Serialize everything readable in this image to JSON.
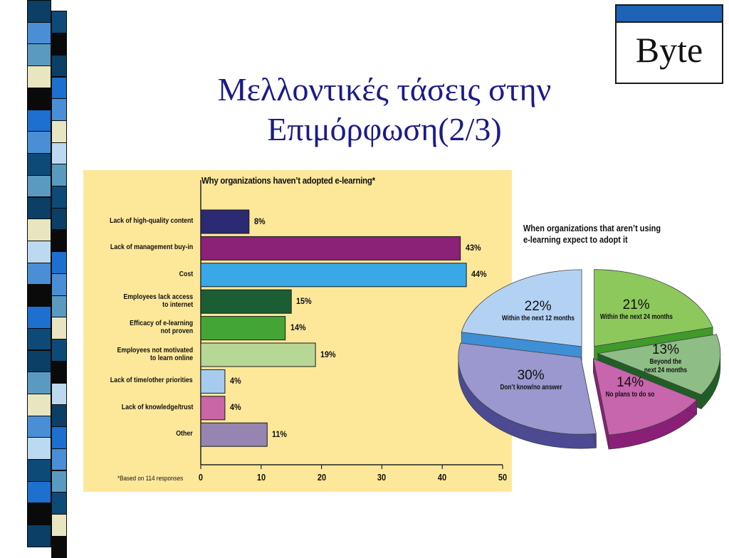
{
  "slide": {
    "title_line1": "Μελλοντικές τάσεις στην",
    "title_line2": "Επιμόρφωση(2/3)"
  },
  "logo": {
    "text": "Byte"
  },
  "chart_data": [
    {
      "type": "bar",
      "orientation": "horizontal",
      "title": "Why organizations haven’t adopted e-learning*",
      "categories": [
        [
          "Lack of high-quality content"
        ],
        [
          "Lack of management buy-in"
        ],
        [
          "Cost"
        ],
        [
          "Employees lack access",
          "to internet"
        ],
        [
          "Efficacy of e-learning",
          "not proven"
        ],
        [
          "Employees not motivated",
          "to learn online"
        ],
        [
          "Lack of time/other priorities"
        ],
        [
          "Lack of knowledge/trust"
        ],
        [
          "Other"
        ]
      ],
      "values": [
        8,
        43,
        44,
        15,
        14,
        19,
        4,
        4,
        11
      ],
      "value_labels": [
        "8%",
        "43%",
        "44%",
        "15%",
        "14%",
        "19%",
        "4%",
        "4%",
        "11%"
      ],
      "colors": [
        "#2b2a72",
        "#8c2178",
        "#3aa7e6",
        "#1c5e33",
        "#43a536",
        "#b7d795",
        "#a7cbef",
        "#c866a6",
        "#9585b0"
      ],
      "xlim": [
        0,
        50
      ],
      "xticks": [
        "0",
        "10",
        "20",
        "30",
        "40",
        "50"
      ],
      "footnote": "*Based on 114 responses"
    },
    {
      "type": "pie",
      "style": "exploded-3d",
      "title_line1": "When organizations that aren’t using",
      "title_line2": "e-learning expect to adopt it",
      "slices": [
        {
          "pct": "22%",
          "value": 22,
          "label": [
            "Within the next 12 months"
          ],
          "color": "#b3d2f3",
          "side": "#3f8fd6"
        },
        {
          "pct": "21%",
          "value": 21,
          "label": [
            "Within the next 24 months"
          ],
          "color": "#8cc85c",
          "side": "#3f9a2a"
        },
        {
          "pct": "13%",
          "value": 13,
          "label": [
            "Beyond the",
            "next 24 months"
          ],
          "color": "#8fbd86",
          "side": "#1f5f26"
        },
        {
          "pct": "14%",
          "value": 14,
          "label": [
            "No plans to do so"
          ],
          "color": "#c765ad",
          "side": "#8a1f77"
        },
        {
          "pct": "30%",
          "value": 30,
          "label": [
            "Don’t know/no answer"
          ],
          "color": "#9a98ce",
          "side": "#4b4a93"
        }
      ]
    }
  ]
}
